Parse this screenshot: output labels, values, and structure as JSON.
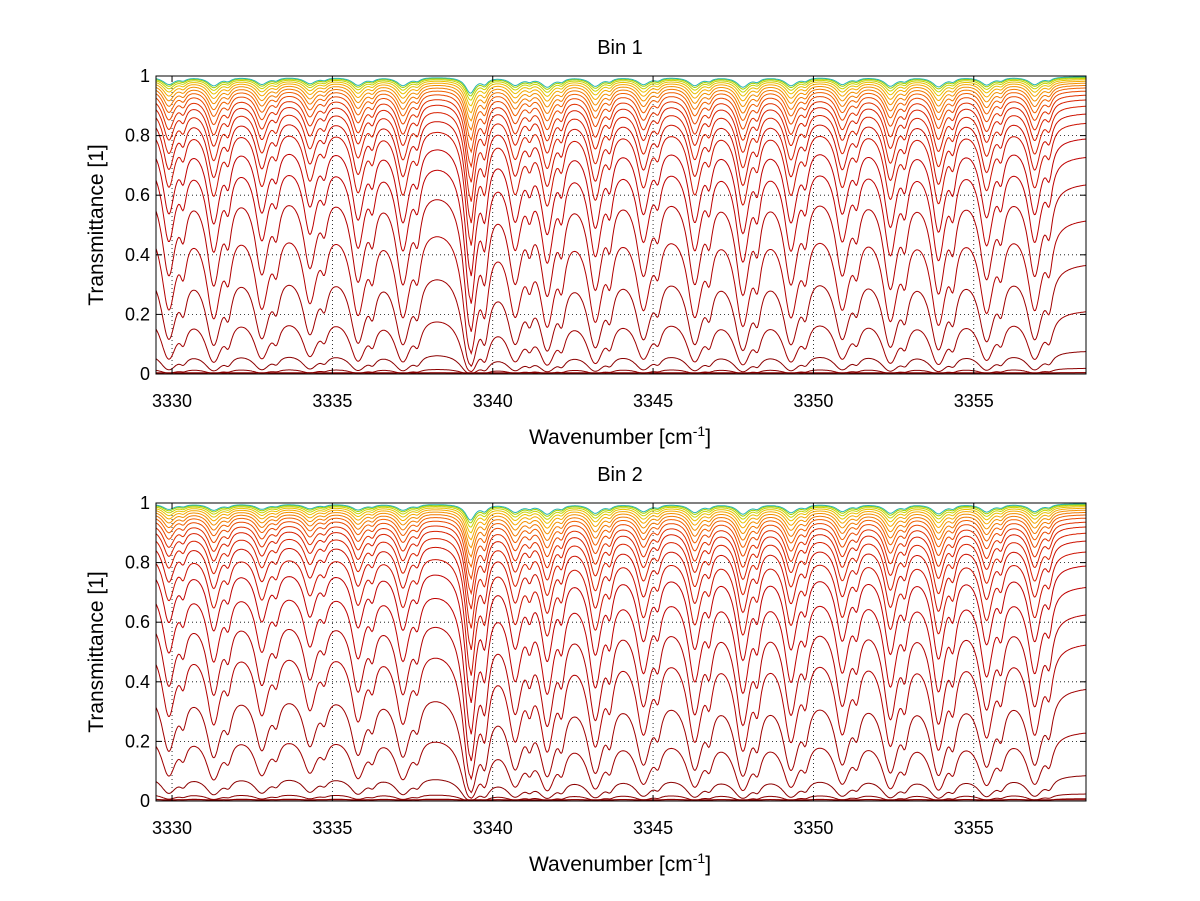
{
  "chart_data": [
    {
      "type": "line",
      "title": "Bin 1",
      "xlabel": "Wavenumber [cm",
      "xlabel_sup": "-1",
      "xlabel_end": "]",
      "ylabel": "Transmittance [1]",
      "xlim": [
        3329.5,
        3358.5
      ],
      "ylim": [
        0,
        1
      ],
      "xticks": [
        3330,
        3335,
        3340,
        3345,
        3350,
        3355
      ],
      "xtick_labels": [
        "3330",
        "3335",
        "3340",
        "3345",
        "3350",
        "3355"
      ],
      "yticks": [
        0,
        0.2,
        0.4,
        0.6,
        0.8,
        1
      ],
      "ytick_labels": [
        "0",
        "0.2",
        "0.4",
        "0.6",
        "0.8",
        "1"
      ],
      "grid": true,
      "line_centers": [
        3329.9,
        3331.3,
        3332.8,
        3334.3,
        3335.8,
        3337.2,
        3339.3,
        3340.7,
        3341.7,
        3343.2,
        3344.7,
        3346.3,
        3347.8,
        3349.3,
        3350.9,
        3352.4,
        3353.9,
        3355.4,
        3356.9
      ],
      "series_baselines": [
        0.0,
        0.005,
        0.02,
        0.08,
        0.22,
        0.38,
        0.53,
        0.65,
        0.74,
        0.8,
        0.85,
        0.88,
        0.905,
        0.925,
        0.94,
        0.953,
        0.963,
        0.971,
        0.978,
        0.984,
        0.989,
        0.993,
        0.996,
        0.998
      ],
      "series_colors": [
        "#8b0000",
        "#8b0000",
        "#8b0000",
        "#8b0000",
        "#a00000",
        "#a00000",
        "#b30000",
        "#b30000",
        "#c00000",
        "#c00000",
        "#cc1100",
        "#cc1100",
        "#d82000",
        "#d82000",
        "#e03000",
        "#e84800",
        "#f06000",
        "#f07800",
        "#f29000",
        "#f4a800",
        "#e8c000",
        "#c8d400",
        "#a0d000",
        "#2ab5b0"
      ]
    },
    {
      "type": "line",
      "title": "Bin 2",
      "xlabel": "Wavenumber [cm",
      "xlabel_sup": "-1",
      "xlabel_end": "]",
      "ylabel": "Transmittance [1]",
      "xlim": [
        3329.5,
        3358.5
      ],
      "ylim": [
        0,
        1
      ],
      "xticks": [
        3330,
        3335,
        3340,
        3345,
        3350,
        3355
      ],
      "xtick_labels": [
        "3330",
        "3335",
        "3340",
        "3345",
        "3350",
        "3355"
      ],
      "yticks": [
        0,
        0.2,
        0.4,
        0.6,
        0.8,
        1
      ],
      "ytick_labels": [
        "0",
        "0.2",
        "0.4",
        "0.6",
        "0.8",
        "1"
      ],
      "grid": true,
      "line_centers": [
        3329.9,
        3331.3,
        3332.8,
        3334.3,
        3335.8,
        3337.2,
        3339.3,
        3340.7,
        3341.7,
        3343.2,
        3344.7,
        3346.3,
        3347.8,
        3349.3,
        3350.9,
        3352.4,
        3353.9,
        3355.4,
        3356.9
      ],
      "series_baselines": [
        0.0,
        0.008,
        0.025,
        0.09,
        0.24,
        0.39,
        0.54,
        0.64,
        0.73,
        0.8,
        0.845,
        0.88,
        0.905,
        0.925,
        0.94,
        0.953,
        0.963,
        0.971,
        0.978,
        0.984,
        0.989,
        0.993,
        0.996,
        0.998
      ],
      "series_colors": [
        "#8b0000",
        "#8b0000",
        "#8b0000",
        "#8b0000",
        "#a00000",
        "#a00000",
        "#b30000",
        "#b30000",
        "#c00000",
        "#c00000",
        "#cc1100",
        "#cc1100",
        "#d82000",
        "#d82000",
        "#e03000",
        "#e84800",
        "#f06000",
        "#f07800",
        "#f29000",
        "#f4a800",
        "#e8c000",
        "#c8d400",
        "#a0d000",
        "#2ab5b0"
      ]
    }
  ]
}
